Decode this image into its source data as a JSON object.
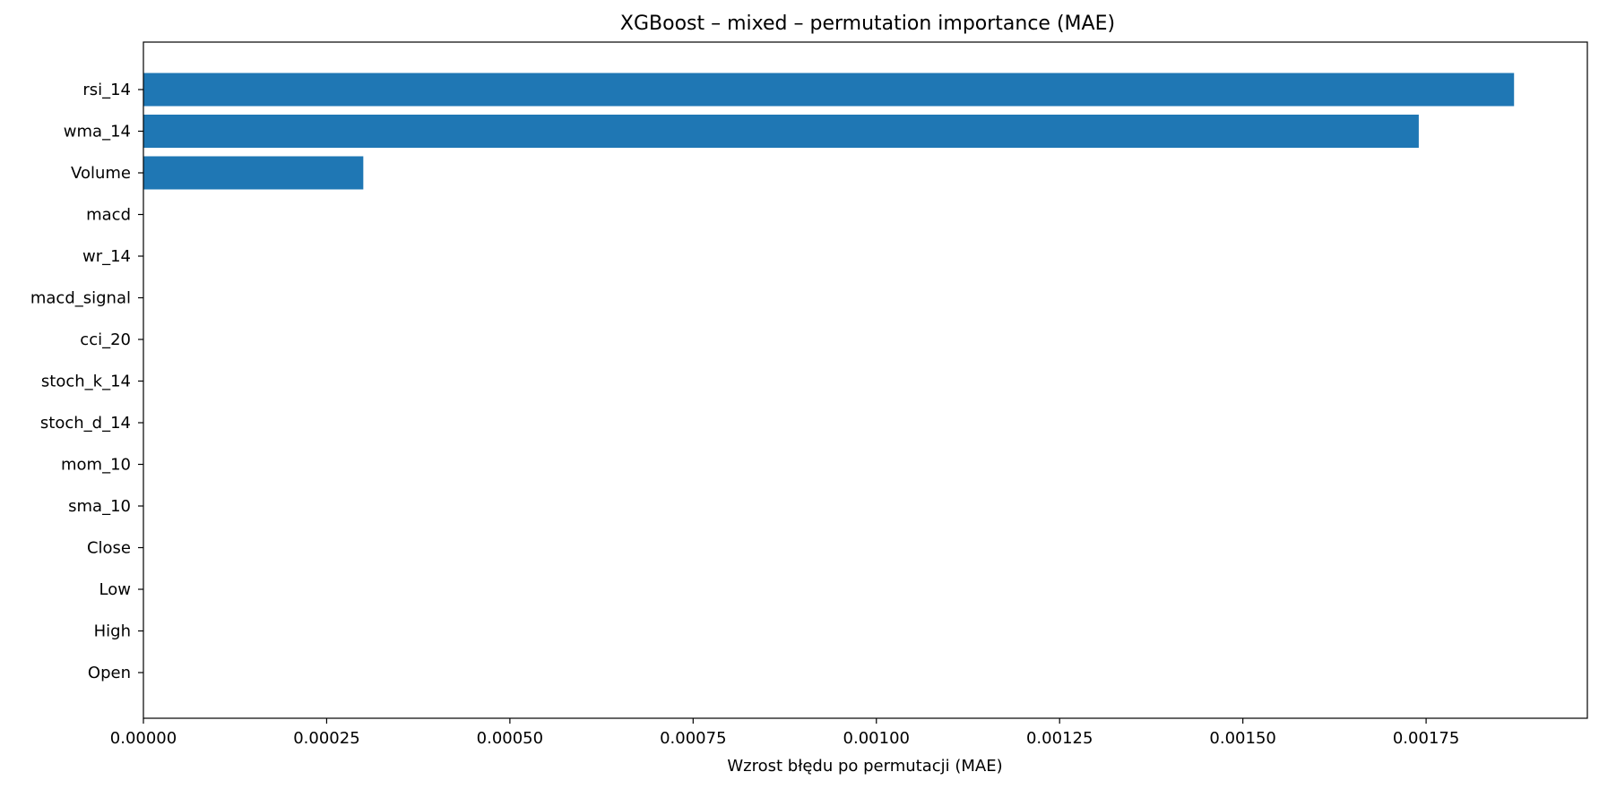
{
  "chart_data": {
    "type": "bar",
    "orientation": "horizontal",
    "title": "XGBoost – mixed – permutation importance (MAE)",
    "xlabel": "Wzrost błędu po permutacji (MAE)",
    "ylabel": "",
    "xlim": [
      0,
      0.00197
    ],
    "x_ticks": [
      0,
      0.00025,
      0.0005,
      0.00075,
      0.001,
      0.00125,
      0.0015,
      0.00175
    ],
    "x_tick_labels": [
      "0.00000",
      "0.00025",
      "0.00050",
      "0.00075",
      "0.00100",
      "0.00125",
      "0.00150",
      "0.00175"
    ],
    "categories": [
      "rsi_14",
      "wma_14",
      "Volume",
      "macd",
      "wr_14",
      "macd_signal",
      "cci_20",
      "stoch_k_14",
      "stoch_d_14",
      "mom_10",
      "sma_10",
      "Close",
      "Low",
      "High",
      "Open"
    ],
    "values": [
      0.00187,
      0.00174,
      0.0003,
      0,
      0,
      0,
      0,
      0,
      0,
      0,
      0,
      0,
      0,
      0,
      0
    ],
    "bar_color": "#1f77b4",
    "grid": false
  }
}
